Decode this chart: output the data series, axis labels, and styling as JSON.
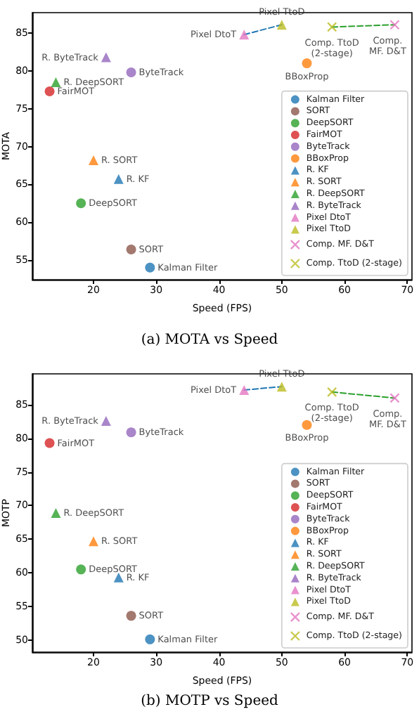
{
  "chart_data": [
    {
      "type": "scatter",
      "title": "(a) MOTA vs Speed",
      "xlabel": "Speed (FPS)",
      "ylabel": "MOTA",
      "xlim": [
        10.25,
        70.75
      ],
      "ylim": [
        52.4,
        87.7
      ],
      "xticks": [
        20,
        30,
        40,
        50,
        60,
        70
      ],
      "yticks": [
        55,
        60,
        65,
        70,
        75,
        80,
        85
      ],
      "legend": "bottom right",
      "series": [
        {
          "type": "line",
          "color": "#1f77b4",
          "line_style": "dashed",
          "marker": "none",
          "x": [
            44,
            50
          ],
          "values": [
            84.8,
            86.1
          ]
        },
        {
          "type": "line",
          "color": "#2ca02c",
          "line_style": "dashed",
          "marker": "none",
          "x": [
            58,
            68
          ],
          "values": [
            85.8,
            86.1
          ]
        },
        {
          "name": "Kalman Filter",
          "color": "#1f77b4",
          "marker": "circle",
          "x": [
            29
          ],
          "values": [
            54
          ]
        },
        {
          "name": "SORT",
          "color": "#8c564b",
          "marker": "circle",
          "x": [
            26
          ],
          "values": [
            56.4
          ]
        },
        {
          "name": "DeepSORT",
          "color": "#2ca02c",
          "marker": "circle",
          "x": [
            18
          ],
          "values": [
            62.5
          ]
        },
        {
          "name": "FairMOT",
          "color": "#d62728",
          "marker": "circle",
          "x": [
            13
          ],
          "values": [
            77.3
          ]
        },
        {
          "name": "ByteTrack",
          "color": "#9467bd",
          "marker": "circle",
          "x": [
            26
          ],
          "values": [
            79.8
          ]
        },
        {
          "name": "BBoxProp",
          "color": "#ff7f0e",
          "marker": "circle",
          "x": [
            54
          ],
          "values": [
            81.0
          ]
        },
        {
          "name": "R. KF",
          "color": "#1f77b4",
          "marker": "triangle",
          "x": [
            24
          ],
          "values": [
            65.7
          ]
        },
        {
          "name": "R. SORT",
          "color": "#ff7f0e",
          "marker": "triangle",
          "x": [
            20
          ],
          "values": [
            68.2
          ]
        },
        {
          "name": "R. DeepSORT",
          "color": "#2ca02c",
          "marker": "triangle",
          "x": [
            14
          ],
          "values": [
            78.5
          ]
        },
        {
          "name": "R. ByteTrack",
          "color": "#9467bd",
          "marker": "triangle",
          "x": [
            22
          ],
          "values": [
            81.8
          ]
        },
        {
          "name": "Pixel DtoT",
          "color": "#e377c2",
          "marker": "triangle",
          "x": [
            44
          ],
          "values": [
            84.8
          ]
        },
        {
          "name": "Pixel TtoD",
          "color": "#bcbd22",
          "marker": "triangle",
          "x": [
            50
          ],
          "values": [
            86.1
          ]
        },
        {
          "name": "Comp. MF. D&T",
          "color": "#e377c2",
          "marker": "cross",
          "x": [
            68
          ],
          "values": [
            86.1
          ]
        },
        {
          "name": "Comp. TtoD (2-stage)",
          "color": "#bcbd22",
          "marker": "cross",
          "x": [
            58
          ],
          "values": [
            85.8
          ]
        }
      ]
    },
    {
      "type": "scatter",
      "title": "(b) MOTP vs Speed",
      "xlabel": "Speed (FPS)",
      "ylabel": "MOTP",
      "xlim": [
        10.25,
        70.75
      ],
      "ylim": [
        48.2,
        89.6
      ],
      "xticks": [
        20,
        30,
        40,
        50,
        60,
        70
      ],
      "yticks": [
        50,
        55,
        60,
        65,
        70,
        75,
        80,
        85
      ],
      "legend": "bottom right",
      "series": [
        {
          "type": "line",
          "color": "#1f77b4",
          "line_style": "dashed",
          "marker": "none",
          "x": [
            44,
            50
          ],
          "values": [
            87.2,
            87.7
          ]
        },
        {
          "type": "line",
          "color": "#2ca02c",
          "line_style": "dashed",
          "marker": "none",
          "x": [
            58,
            68
          ],
          "values": [
            86.9,
            86.0
          ]
        },
        {
          "name": "Kalman Filter",
          "color": "#1f77b4",
          "marker": "circle",
          "x": [
            29
          ],
          "values": [
            50.1
          ]
        },
        {
          "name": "SORT",
          "color": "#8c564b",
          "marker": "circle",
          "x": [
            26
          ],
          "values": [
            53.6
          ]
        },
        {
          "name": "DeepSORT",
          "color": "#2ca02c",
          "marker": "circle",
          "x": [
            18
          ],
          "values": [
            60.5
          ]
        },
        {
          "name": "FairMOT",
          "color": "#d62728",
          "marker": "circle",
          "x": [
            13
          ],
          "values": [
            79.3
          ]
        },
        {
          "name": "ByteTrack",
          "color": "#9467bd",
          "marker": "circle",
          "x": [
            26
          ],
          "values": [
            80.9
          ]
        },
        {
          "name": "BBoxProp",
          "color": "#ff7f0e",
          "marker": "circle",
          "x": [
            54
          ],
          "values": [
            82.0
          ]
        },
        {
          "name": "R. KF",
          "color": "#1f77b4",
          "marker": "triangle",
          "x": [
            24
          ],
          "values": [
            59.3
          ]
        },
        {
          "name": "R. SORT",
          "color": "#ff7f0e",
          "marker": "triangle",
          "x": [
            20
          ],
          "values": [
            64.7
          ]
        },
        {
          "name": "R. DeepSORT",
          "color": "#2ca02c",
          "marker": "triangle",
          "x": [
            14
          ],
          "values": [
            68.9
          ]
        },
        {
          "name": "R. ByteTrack",
          "color": "#9467bd",
          "marker": "triangle",
          "x": [
            22
          ],
          "values": [
            82.6
          ]
        },
        {
          "name": "Pixel DtoT",
          "color": "#e377c2",
          "marker": "triangle",
          "x": [
            44
          ],
          "values": [
            87.2
          ]
        },
        {
          "name": "Pixel TtoD",
          "color": "#bcbd22",
          "marker": "triangle",
          "x": [
            50
          ],
          "values": [
            87.7
          ]
        },
        {
          "name": "Comp. MF. D&T",
          "color": "#e377c2",
          "marker": "cross",
          "x": [
            68
          ],
          "values": [
            86.0
          ]
        },
        {
          "name": "Comp. TtoD (2-stage)",
          "color": "#bcbd22",
          "marker": "cross",
          "x": [
            58
          ],
          "values": [
            86.9
          ]
        }
      ]
    }
  ]
}
